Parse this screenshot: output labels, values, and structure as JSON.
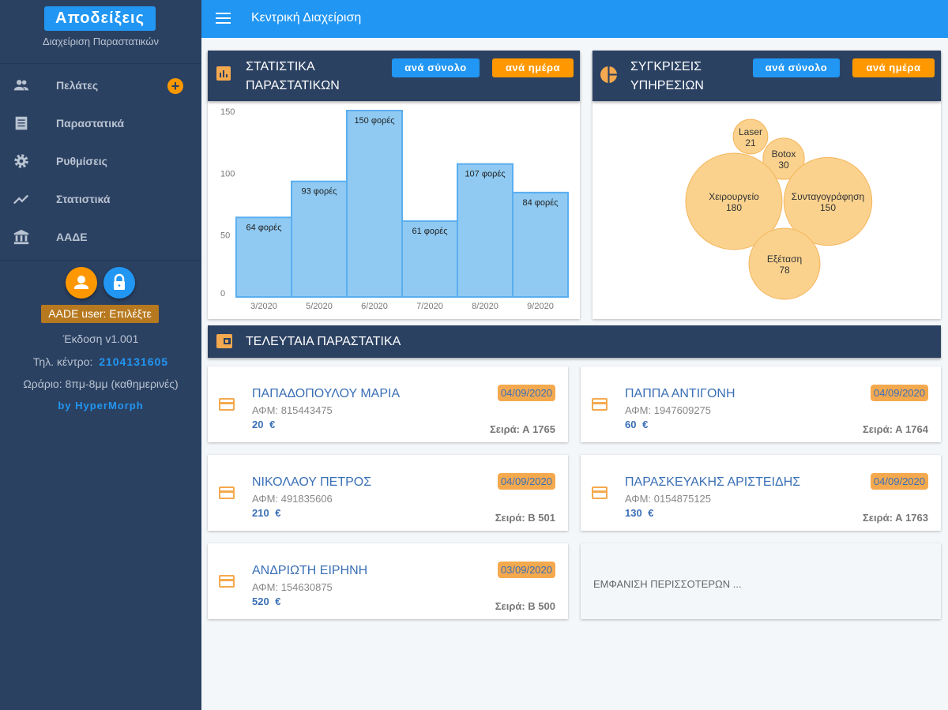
{
  "sidebar": {
    "brand": "Αποδείξεις",
    "subtitle": "Διαχείριση Παραστατικών",
    "items": [
      {
        "label": "Πελάτες",
        "icon": "people-icon"
      },
      {
        "label": "Παραστατικά",
        "icon": "receipt-icon"
      },
      {
        "label": "Ρυθμίσεις",
        "icon": "gear-icon"
      },
      {
        "label": "Στατιστικά",
        "icon": "trending-icon"
      },
      {
        "label": "ΑΑΔΕ",
        "icon": "bank-icon"
      }
    ],
    "add_symbol": "+",
    "aade_user": "AADE user: Επιλέξτε",
    "version": "Έκδοση v1.001",
    "phone_label": "Τηλ. κέντρο:",
    "phone": "2104131605",
    "hours": "Ωράριο: 8πμ-8μμ (καθημερινές)",
    "credit": "by HyperMorph"
  },
  "topbar": {
    "title": "Κεντρική Διαχείριση"
  },
  "stats": {
    "title_line1": "ΣΤΑΤΙΣΤΙΚΑ",
    "title_line2": "ΠΑΡΑΣΤΑΤΙΚΩΝ",
    "btn_total": "ανά σύνολο",
    "btn_day": "ανά ημέρα"
  },
  "compare": {
    "title_line1": "ΣΥΓΚΡΙΣΕΙΣ",
    "title_line2": "ΥΠΗΡΕΣΙΩΝ",
    "btn_total": "ανά σύνολο",
    "btn_day": "ανά ημέρα"
  },
  "chart_data": [
    {
      "type": "bar",
      "categories": [
        "3/2020",
        "5/2020",
        "6/2020",
        "7/2020",
        "8/2020",
        "9/2020"
      ],
      "values": [
        64,
        93,
        150,
        61,
        107,
        84
      ],
      "value_suffix": "φορές",
      "yticks": [
        0,
        50,
        100,
        150
      ],
      "ylim": [
        0,
        150
      ],
      "color": "#90caf2"
    },
    {
      "type": "bubble",
      "items": [
        {
          "label": "Laser",
          "value": 21
        },
        {
          "label": "Botox",
          "value": 30
        },
        {
          "label": "Χειρουργείο",
          "value": 180
        },
        {
          "label": "Συνταγογράφηση",
          "value": 150
        },
        {
          "label": "Εξέταση",
          "value": 78
        }
      ],
      "color": "#fad28e"
    }
  ],
  "recent": {
    "title": "ΤΕΛΕΥΤΑΙΑ ΠΑΡΑΣΤΑΤΙΚΑ",
    "more": "ΕΜΦΑΝΙΣΗ ΠΕΡΙΣΣΟΤΕΡΩΝ ...",
    "items": [
      {
        "name": "ΠΑΠΑΔΟΠΟΥΛΟΥ ΜΑΡΙΑ",
        "afm": "ΑΦΜ: 815443475",
        "amount": "20 €",
        "date": "04/09/2020",
        "series": "Σειρά: Α 1765"
      },
      {
        "name": "ΠΑΠΠΑ ΑΝΤΙΓΟΝΗ",
        "afm": "ΑΦΜ: 1947609275",
        "amount": "60 €",
        "date": "04/09/2020",
        "series": "Σειρά: Α 1764"
      },
      {
        "name": "ΝΙΚΟΛΑΟΥ ΠΕΤΡΟΣ",
        "afm": "ΑΦΜ: 491835606",
        "amount": "210 €",
        "date": "04/09/2020",
        "series": "Σειρά: Β 501"
      },
      {
        "name": "ΠΑΡΑΣΚΕΥΑΚΗΣ ΑΡΙΣΤΕΙΔΗΣ",
        "afm": "ΑΦΜ: 0154875125",
        "amount": "130 €",
        "date": "04/09/2020",
        "series": "Σειρά: Α 1763"
      },
      {
        "name": "ΑΝΔΡΙΩΤΗ ΕΙΡΗΝΗ",
        "afm": "ΑΦΜ: 154630875",
        "amount": "520 €",
        "date": "03/09/2020",
        "series": "Σειρά: Β 500"
      }
    ]
  }
}
